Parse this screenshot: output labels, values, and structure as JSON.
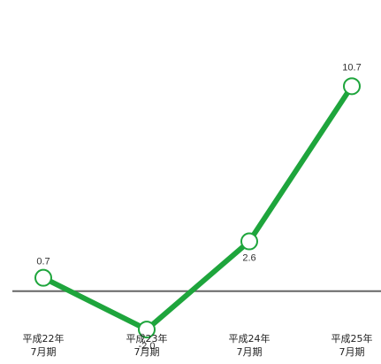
{
  "chart_data": {
    "type": "line",
    "categories": [
      [
        "平成22年",
        "7月期"
      ],
      [
        "平成23年",
        "7月期"
      ],
      [
        "平成24年",
        "7月期"
      ],
      [
        "平成25年",
        "7月期"
      ]
    ],
    "values": [
      0.7,
      -2.0,
      2.6,
      10.7
    ],
    "data_labels": [
      "0.7",
      "-2.0",
      "2.6",
      "10.7"
    ],
    "ylim": [
      -3.8,
      15.2
    ],
    "grid": false,
    "legend": "none",
    "zero_line": true,
    "title": "",
    "xlabel": "",
    "ylabel": ""
  },
  "colors": {
    "line": "#1ea53c",
    "marker_fill": "#ffffff",
    "marker_stroke": "#1ea53c",
    "zero_line": "#666666",
    "label_text": "#333333"
  }
}
